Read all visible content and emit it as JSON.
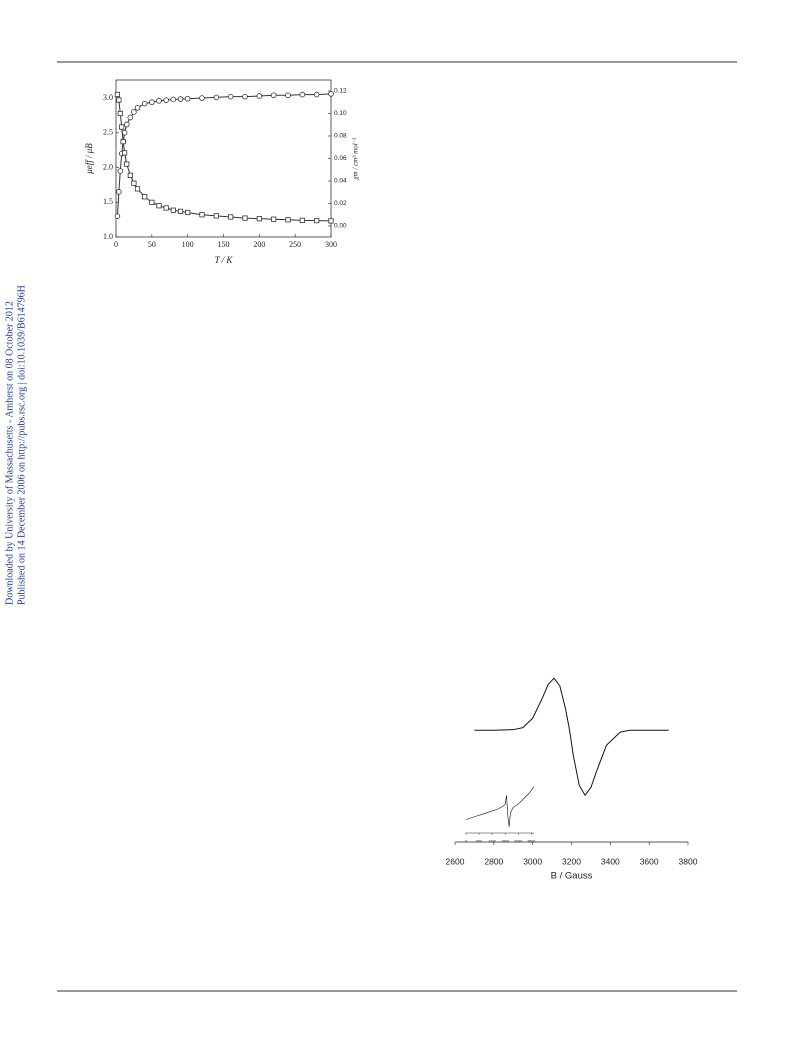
{
  "sidebar": {
    "line1": "Downloaded by University of Massachusetts - Amherst on 08 October 2012",
    "line2": "Published on 14 December 2006 on http://pubs.rsc.org | doi:10.1039/B614796H"
  },
  "chart_data": [
    {
      "type": "line",
      "xlabel": "T / K",
      "ylabel": "μeff / μB",
      "y2label": "χm / cm³ mol⁻¹",
      "x": [
        2,
        4,
        6,
        8,
        10,
        12,
        15,
        20,
        25,
        30,
        40,
        50,
        60,
        70,
        80,
        90,
        100,
        120,
        140,
        160,
        180,
        200,
        220,
        240,
        260,
        280,
        300
      ],
      "series": [
        {
          "name": "μeff",
          "marker": "circle",
          "color": "#333333",
          "values": [
            1.3,
            1.65,
            1.95,
            2.2,
            2.38,
            2.5,
            2.62,
            2.72,
            2.8,
            2.86,
            2.92,
            2.94,
            2.96,
            2.97,
            2.98,
            2.985,
            2.99,
            3.0,
            3.01,
            3.02,
            3.02,
            3.03,
            3.04,
            3.04,
            3.05,
            3.05,
            3.06
          ]
        },
        {
          "name": "χm",
          "marker": "square",
          "color": "#333333",
          "axis": "y2",
          "values": [
            0.117,
            0.112,
            0.1,
            0.088,
            0.075,
            0.065,
            0.055,
            0.045,
            0.038,
            0.033,
            0.026,
            0.021,
            0.018,
            0.016,
            0.014,
            0.013,
            0.012,
            0.01,
            0.009,
            0.008,
            0.007,
            0.0065,
            0.006,
            0.0055,
            0.005,
            0.0048,
            0.0045
          ]
        }
      ],
      "xlim": [
        0,
        300
      ],
      "xticks": [
        0,
        50,
        100,
        150,
        200,
        250,
        300
      ],
      "ylim": [
        1.0,
        3.26
      ],
      "yticks": [
        {
          "value": 1.0,
          "label": "1.0"
        },
        {
          "value": 1.5,
          "label": "1.5"
        },
        {
          "value": 2.0,
          "label": "2.0"
        },
        {
          "value": 2.5,
          "label": "2.5"
        },
        {
          "value": 3.0,
          "label": "3.0"
        }
      ],
      "y2lim": [
        -0.0098,
        0.1298
      ],
      "y2ticks": [
        {
          "value": 0,
          "label": "0.00"
        },
        {
          "value": 0.02,
          "label": "0.02"
        },
        {
          "value": 0.04,
          "label": "0.04"
        },
        {
          "value": 0.06,
          "label": "0.06"
        },
        {
          "value": 0.08,
          "label": "0.08"
        },
        {
          "value": 0.1,
          "label": "0.10"
        },
        {
          "value": 0.12,
          "label": "0.12"
        }
      ]
    },
    {
      "type": "line",
      "xlabel": "B / Gauss",
      "x": [
        2700,
        2800,
        2900,
        2950,
        3000,
        3050,
        3080,
        3110,
        3140,
        3170,
        3190,
        3210,
        3240,
        3270,
        3300,
        3330,
        3380,
        3450,
        3500,
        3600,
        3700
      ],
      "series": [
        {
          "name": "EPR",
          "color": "#111111",
          "values": [
            0,
            0,
            0.01,
            0.05,
            0.23,
            0.62,
            0.88,
            1,
            0.85,
            0.4,
            0,
            -0.5,
            -1.06,
            -1.25,
            -1.1,
            -0.78,
            -0.29,
            -0.04,
            0,
            0,
            0
          ]
        }
      ],
      "xlim": [
        2600,
        3800
      ],
      "xticks": [
        2600,
        2800,
        3000,
        3200,
        3400,
        3600,
        3800
      ],
      "ylim": [
        -1.4,
        1.1
      ]
    },
    {
      "type": "line",
      "x": [
        0,
        200,
        400,
        600,
        800,
        1000,
        1200,
        1400,
        1500,
        1550,
        1600,
        1650,
        1700,
        1800,
        2000,
        2200,
        2400,
        2600
      ],
      "series": [
        {
          "name": "inset",
          "color": "#111111",
          "values": [
            0,
            0.05,
            0.1,
            0.15,
            0.2,
            0.25,
            0.3,
            0.38,
            0.45,
            0.7,
            0.1,
            -0.2,
            0.2,
            0.35,
            0.45,
            0.6,
            0.75,
            0.95
          ]
        }
      ],
      "xlim": [
        0,
        2600
      ],
      "xticks": [
        0,
        500,
        1000,
        1500,
        2000,
        2500
      ],
      "ylim": [
        -0.3,
        1
      ]
    }
  ]
}
